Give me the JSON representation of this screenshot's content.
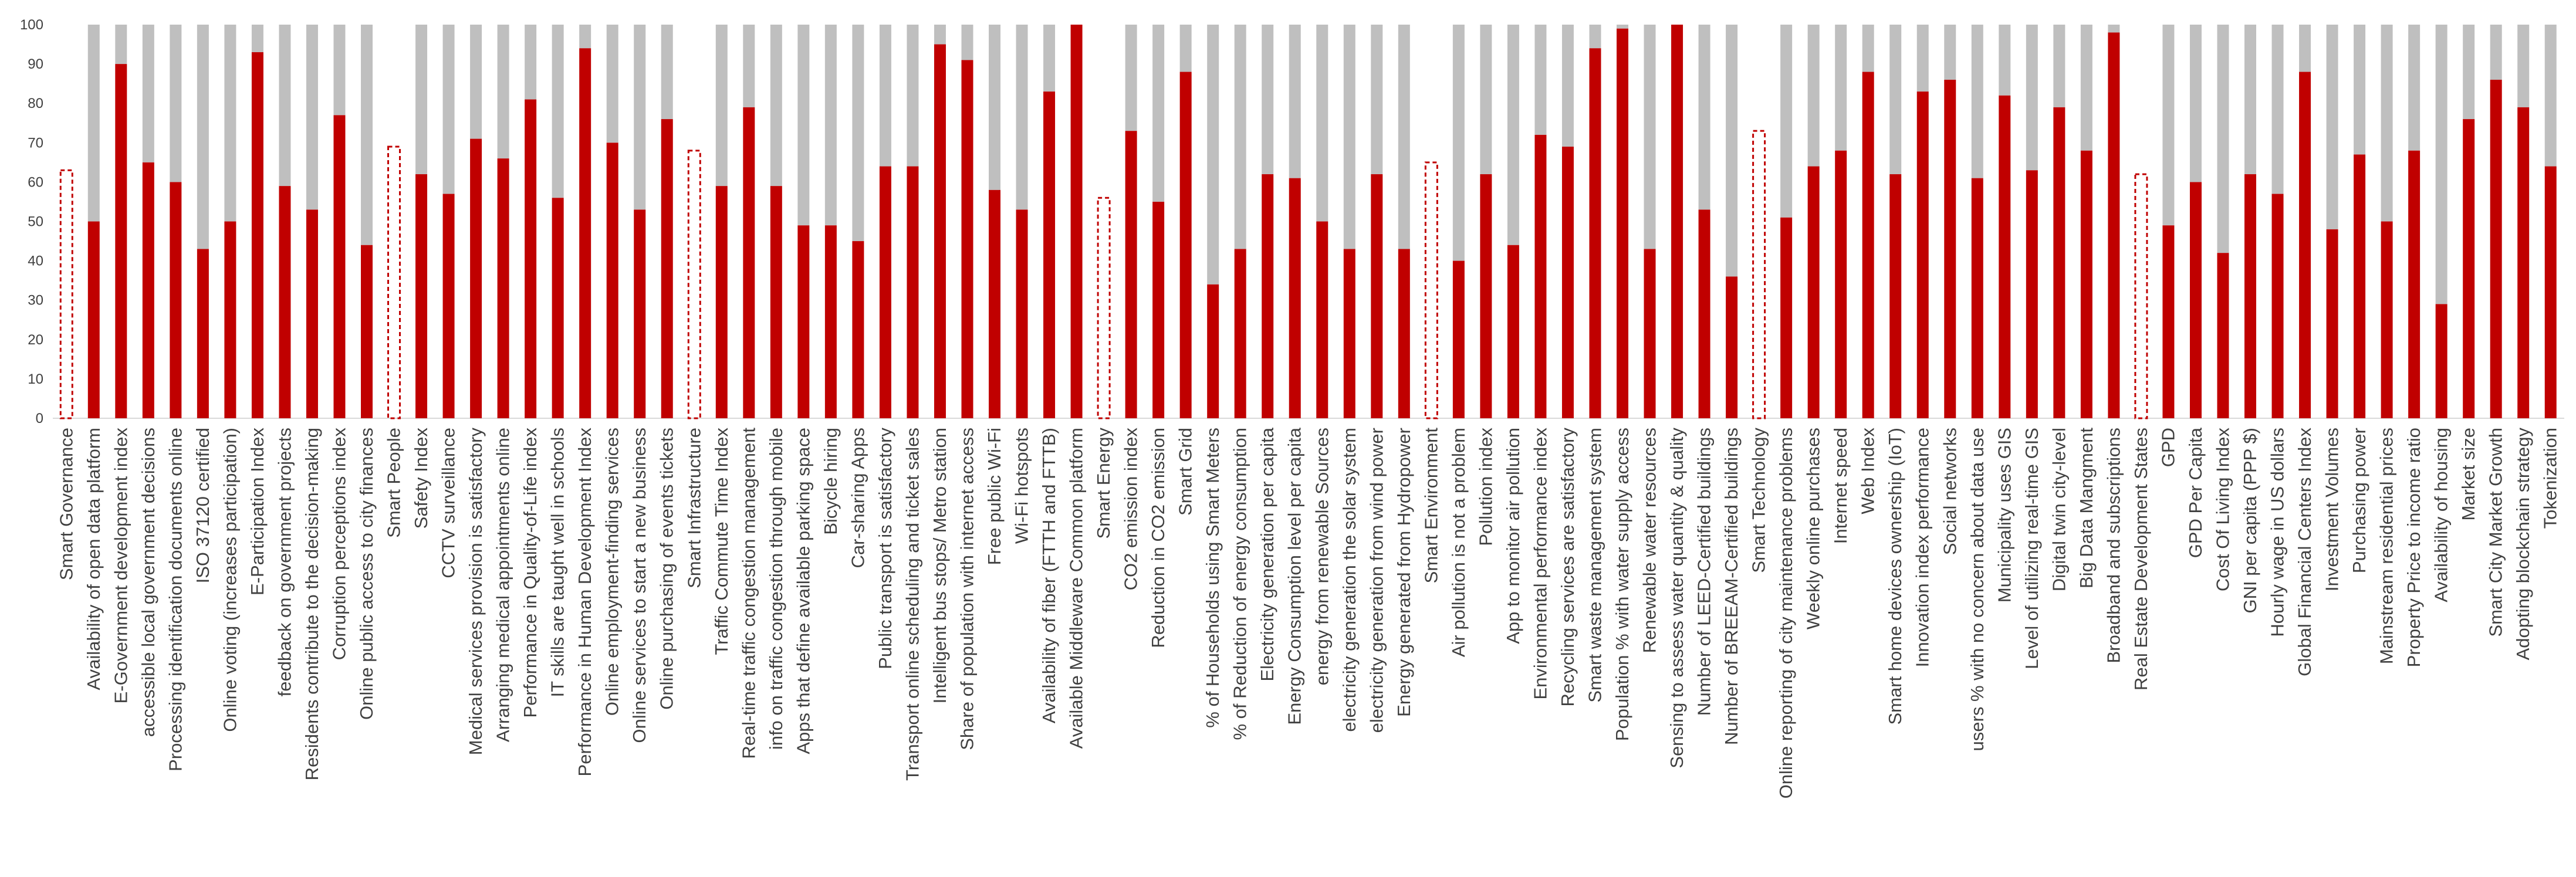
{
  "chart_data": {
    "type": "bar",
    "stacked": true,
    "ylim": [
      0,
      100
    ],
    "yticks": [
      0,
      10,
      20,
      30,
      40,
      50,
      60,
      70,
      80,
      90,
      100
    ],
    "grid": false,
    "legend": "none",
    "colors": {
      "value": "#c00000",
      "remainder": "#bfbfbf",
      "category_outline": "#c00000",
      "axis": "#d9d9d9",
      "text": "#404040"
    },
    "categories": [
      {
        "label": "Smart Governance",
        "value": 63,
        "group_header": true
      },
      {
        "label": "Availability of open data platform",
        "value": 50
      },
      {
        "label": "E-Government development index",
        "value": 90
      },
      {
        "label": "accessible local government decisions",
        "value": 65
      },
      {
        "label": "Processing identification documents online",
        "value": 60
      },
      {
        "label": "ISO 37120 certified",
        "value": 43
      },
      {
        "label": "Online voting (increases participation)",
        "value": 50
      },
      {
        "label": "E-Participation Index",
        "value": 93
      },
      {
        "label": "feedback on government projects",
        "value": 59
      },
      {
        "label": "Residents contribute to the decision-making",
        "value": 53
      },
      {
        "label": "Corruption perceptions index",
        "value": 77
      },
      {
        "label": "Online public access to city finances",
        "value": 44
      },
      {
        "label": "Smart People",
        "value": 69,
        "group_header": true
      },
      {
        "label": "Safety Index",
        "value": 62
      },
      {
        "label": "CCTV surveillance",
        "value": 57
      },
      {
        "label": "Medical services provision is satisfactory",
        "value": 71
      },
      {
        "label": "Arranging medical appointments online",
        "value": 66
      },
      {
        "label": "Performance in Quality-of-Life index",
        "value": 81
      },
      {
        "label": "IT skills are taught well in schools",
        "value": 56
      },
      {
        "label": "Performance in Human Development Index",
        "value": 94
      },
      {
        "label": "Online employment-finding services",
        "value": 70
      },
      {
        "label": "Online services to start a new business",
        "value": 53
      },
      {
        "label": "Online purchasing of events tickets",
        "value": 76
      },
      {
        "label": "Smart Infrastructure",
        "value": 68,
        "group_header": true
      },
      {
        "label": "Traffic Commute Time Index",
        "value": 59
      },
      {
        "label": "Real-time traffic congestion management",
        "value": 79
      },
      {
        "label": "info on traffic congestion through mobile",
        "value": 59
      },
      {
        "label": "Apps that define available parking space",
        "value": 49
      },
      {
        "label": "Bicycle hiring",
        "value": 49
      },
      {
        "label": "Car-sharing Apps",
        "value": 45
      },
      {
        "label": "Public transport is satisfactory",
        "value": 64
      },
      {
        "label": "Transport online scheduling and ticket sales",
        "value": 64
      },
      {
        "label": "Intelligent bus stops/ Metro station",
        "value": 95
      },
      {
        "label": "Share of population with internet access",
        "value": 91
      },
      {
        "label": "Free public Wi-Fi",
        "value": 58
      },
      {
        "label": "Wi-Fi hotspots",
        "value": 53
      },
      {
        "label": "Availability of fiber (FTTH and FTTB)",
        "value": 83
      },
      {
        "label": "Available Middleware Common platform",
        "value": 100
      },
      {
        "label": "Smart Energy",
        "value": 56,
        "group_header": true
      },
      {
        "label": "CO2 emission index",
        "value": 73
      },
      {
        "label": "Reduction in CO2 emission",
        "value": 55
      },
      {
        "label": "Smart Grid",
        "value": 88
      },
      {
        "label": "% of Households using Smart Meters",
        "value": 34
      },
      {
        "label": "% of Reduction of energy consumption",
        "value": 43
      },
      {
        "label": "Electricity generation per capita",
        "value": 62
      },
      {
        "label": "Energy Consumption level per capita",
        "value": 61
      },
      {
        "label": "energy from renewable Sources",
        "value": 50
      },
      {
        "label": "electricity generation the solar system",
        "value": 43
      },
      {
        "label": "electricity generation from wind power",
        "value": 62
      },
      {
        "label": "Energy generated from Hydropower",
        "value": 43
      },
      {
        "label": "Smart Environment",
        "value": 65,
        "group_header": true
      },
      {
        "label": "Air pollution is not a problem",
        "value": 40
      },
      {
        "label": "Pollution index",
        "value": 62
      },
      {
        "label": "App to  monitor air pollution",
        "value": 44
      },
      {
        "label": "Environmental performance index",
        "value": 72
      },
      {
        "label": "Recycling services are satisfactory",
        "value": 69
      },
      {
        "label": "Smart waste management system",
        "value": 94
      },
      {
        "label": "Population % with water supply access",
        "value": 99
      },
      {
        "label": "Renewable water resources",
        "value": 43
      },
      {
        "label": "Sensing to assess water quantity & quality",
        "value": 100
      },
      {
        "label": "Number of LEED-Certified buildings",
        "value": 53
      },
      {
        "label": "Number of BREEAM-Certified buildings",
        "value": 36
      },
      {
        "label": "Smart Technology",
        "value": 73,
        "group_header": true
      },
      {
        "label": "Online reporting of city maintenance problems",
        "value": 51
      },
      {
        "label": "Weekly online purchases",
        "value": 64
      },
      {
        "label": "Internet speed",
        "value": 68
      },
      {
        "label": "Web Index",
        "value": 88
      },
      {
        "label": "Smart home devices ownership (IoT)",
        "value": 62
      },
      {
        "label": "Innovation index performance",
        "value": 83
      },
      {
        "label": "Social networks",
        "value": 86
      },
      {
        "label": "users % with no concern about data use",
        "value": 61
      },
      {
        "label": "Municipality uses GIS",
        "value": 82
      },
      {
        "label": "Level of utilizing real-time GIS",
        "value": 63
      },
      {
        "label": "Digital twin city-level",
        "value": 79
      },
      {
        "label": "Big Data Mangment",
        "value": 68
      },
      {
        "label": "Broadband and subscriptions",
        "value": 98
      },
      {
        "label": "Real Estate Development States",
        "value": 62,
        "group_header": true
      },
      {
        "label": "GPD",
        "value": 49
      },
      {
        "label": "GPD Per Capita",
        "value": 60
      },
      {
        "label": "Cost Of Living Index",
        "value": 42
      },
      {
        "label": "GNI per capita (PPP $)",
        "value": 62
      },
      {
        "label": "Hourly wage in US dollars",
        "value": 57
      },
      {
        "label": "Global Financial Centers Index",
        "value": 88
      },
      {
        "label": "Investment Volumes",
        "value": 48
      },
      {
        "label": "Purchasing power",
        "value": 67
      },
      {
        "label": "Mainstream residential prices",
        "value": 50
      },
      {
        "label": "Property Price to income ratio",
        "value": 68
      },
      {
        "label": "Availability of housing",
        "value": 29
      },
      {
        "label": "Market size",
        "value": 76
      },
      {
        "label": "Smart City Market Growth",
        "value": 86
      },
      {
        "label": "Adopting blockchain strategy",
        "value": 79
      },
      {
        "label": "Tokenization",
        "value": 64
      }
    ]
  }
}
